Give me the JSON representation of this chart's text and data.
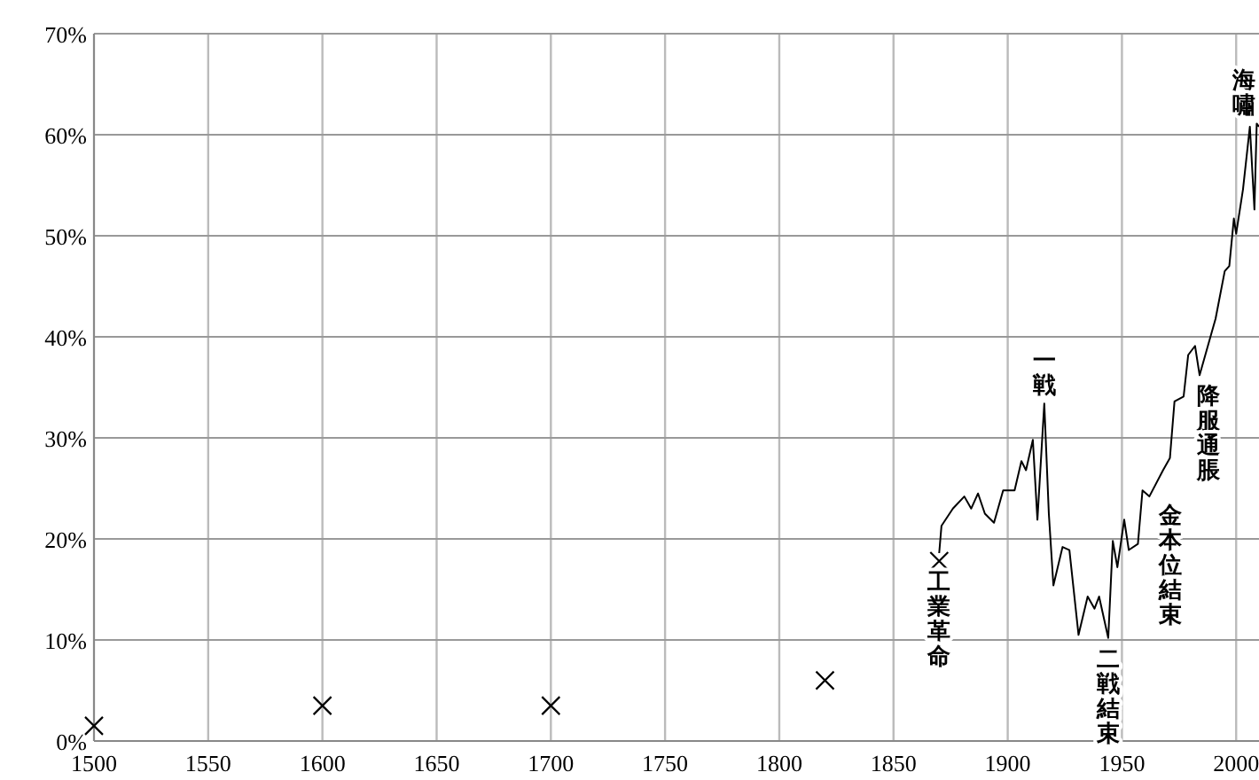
{
  "chart_data": {
    "type": "line",
    "xlim": [
      1500,
      2010
    ],
    "xticks": [
      1500,
      1550,
      1600,
      1650,
      1700,
      1750,
      1800,
      1850,
      1900,
      1950,
      2000
    ],
    "ylim": [
      0,
      70
    ],
    "yticks": [
      {
        "value": 0,
        "label": "0%"
      },
      {
        "value": 10,
        "label": "10%"
      },
      {
        "value": 20,
        "label": "20%"
      },
      {
        "value": 30,
        "label": "30%"
      },
      {
        "value": 40,
        "label": "40%"
      },
      {
        "value": 50,
        "label": "50%"
      },
      {
        "value": 60,
        "label": "60%"
      },
      {
        "value": 70,
        "label": "70%"
      }
    ],
    "grid": true,
    "series": [
      {
        "type": "scatter",
        "marker": "cross",
        "color": "#000000",
        "x": [
          1500,
          1600,
          1700,
          1820,
          1870
        ],
        "values": [
          1.5,
          3.5,
          3.5,
          6,
          17.8
        ]
      },
      {
        "color": "#000000",
        "x": [
          1870,
          1871,
          1876,
          1881,
          1884,
          1887,
          1890,
          1894,
          1898,
          1903,
          1906,
          1908,
          1911,
          1913,
          1916,
          1918,
          1920,
          1924,
          1927,
          1931,
          1935,
          1938,
          1940,
          1944,
          1946,
          1948,
          1951,
          1953,
          1957,
          1959,
          1962,
          1968,
          1971,
          1973,
          1977,
          1979,
          1982,
          1984,
          1988,
          1991,
          1995,
          1997,
          1999,
          2000,
          2003,
          2006,
          2008,
          2009,
          2010
        ],
        "values": [
          18.6,
          21.3,
          23,
          24.2,
          23,
          24.5,
          22.5,
          21.6,
          24.8,
          24.8,
          27.7,
          26.8,
          29.8,
          21.9,
          33.4,
          22.5,
          15.4,
          19.2,
          18.9,
          10.5,
          14.3,
          13.1,
          14.3,
          10.2,
          19.8,
          17.2,
          21.9,
          18.9,
          19.5,
          24.8,
          24.2,
          26.8,
          28,
          33.6,
          34.1,
          38.2,
          39.1,
          36.2,
          39.4,
          41.8,
          46.5,
          47,
          51.7,
          50.2,
          54.6,
          60.8,
          52.6,
          61.1,
          60.8
        ]
      }
    ],
    "annotations": [
      {
        "text": "工業革命",
        "x": 1870,
        "y": 17.8
      },
      {
        "text": "一戦",
        "x": 1916,
        "y": 33.4
      },
      {
        "text": "二戦結束",
        "x": 1944,
        "y": 10.2
      },
      {
        "text": "金本位結束",
        "x": 1971,
        "y": 28
      },
      {
        "text": "降服通脹",
        "x": 1988,
        "y": 39.4
      },
      {
        "text": "海嘯",
        "x": 2009,
        "y": 61.1
      }
    ]
  }
}
